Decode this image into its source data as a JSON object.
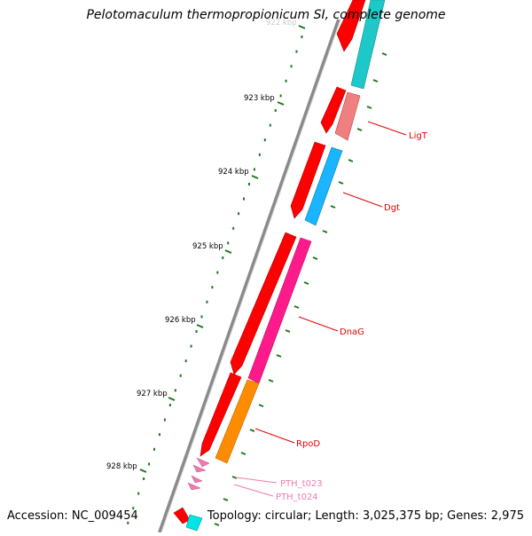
{
  "title": "Pelotomaculum thermopropionicum SI, complete genome",
  "accession": "Accession: NC_009454",
  "summary": "Topology: circular; Length: 3,025,375 bp; Genes: 2,975",
  "ticks": [
    {
      "label": "922 kbp",
      "kbp": 922
    },
    {
      "label": "923 kbp",
      "kbp": 923
    },
    {
      "label": "924 kbp",
      "kbp": 924
    },
    {
      "label": "925 kbp",
      "kbp": 925
    },
    {
      "label": "926 kbp",
      "kbp": 926
    },
    {
      "label": "927 kbp",
      "kbp": 927
    },
    {
      "label": "928 kbp",
      "kbp": 928
    }
  ],
  "genes": [
    {
      "name": "LigT",
      "color": "#e50000"
    },
    {
      "name": "Dgt",
      "color": "#e50000"
    },
    {
      "name": "DnaG",
      "color": "#e50000"
    },
    {
      "name": "RpoD",
      "color": "#e50000"
    },
    {
      "name": "PTH_t023",
      "color": "#f07ab0"
    },
    {
      "name": "PTH_t024",
      "color": "#f07ab0"
    }
  ],
  "colors": {
    "cds": "#ff0000",
    "cog_cyan": "#1ec8c8",
    "cog_salmon": "#f08080",
    "cog_blue": "#1ab4ff",
    "cog_pink": "#ff1a8c",
    "cog_orange": "#ff8c00",
    "trna": "#f07ab0",
    "backbone": "#7f7f7f",
    "tick_green": "#1a7a1a"
  }
}
